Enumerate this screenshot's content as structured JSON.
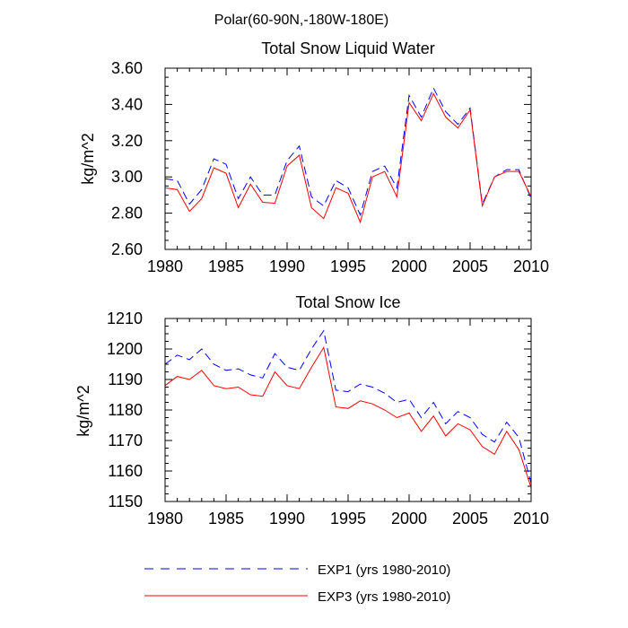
{
  "figure": {
    "suptitle": "Polar(60-90N,-180W-180E)"
  },
  "legend": [
    {
      "label": "EXP1 (yrs 1980-2010)",
      "color": "#0000ff",
      "dash": "dashed"
    },
    {
      "label": "EXP3 (yrs 1980-2010)",
      "color": "#ff0000",
      "dash": "solid"
    }
  ],
  "chart_data": [
    {
      "type": "line",
      "title": "Total Snow Liquid Water",
      "xlabel": "",
      "ylabel": "kg/m^2",
      "xlim": [
        1980,
        2010
      ],
      "ylim": [
        2.6,
        3.6
      ],
      "xticks": [
        1980,
        1985,
        1990,
        1995,
        2000,
        2005,
        2010
      ],
      "xtick_labels": [
        "1980",
        "1985",
        "1990",
        "1995",
        "2000",
        "2005",
        "2010"
      ],
      "yticks": [
        2.6,
        2.8,
        3.0,
        3.2,
        3.4,
        3.6
      ],
      "ytick_labels": [
        "2.60",
        "2.80",
        "3.00",
        "3.20",
        "3.40",
        "3.60"
      ],
      "x": [
        1980,
        1981,
        1982,
        1983,
        1984,
        1985,
        1986,
        1987,
        1988,
        1989,
        1990,
        1991,
        1992,
        1993,
        1994,
        1995,
        1996,
        1997,
        1998,
        1999,
        2000,
        2001,
        2002,
        2003,
        2004,
        2005,
        2006,
        2007,
        2008,
        2009,
        2010
      ],
      "series": [
        {
          "name": "EXP1 (yrs 1980-2010)",
          "color": "#0000ff",
          "dash": "dashed",
          "values": [
            2.99,
            2.98,
            2.85,
            2.93,
            3.1,
            3.07,
            2.88,
            3.0,
            2.9,
            2.9,
            3.09,
            3.17,
            2.89,
            2.84,
            2.98,
            2.94,
            2.79,
            3.03,
            3.06,
            2.94,
            3.45,
            3.33,
            3.49,
            3.36,
            3.29,
            3.38,
            2.85,
            3.0,
            3.04,
            3.04,
            2.88
          ]
        },
        {
          "name": "EXP3 (yrs 1980-2010)",
          "color": "#ff0000",
          "dash": "solid",
          "values": [
            2.94,
            2.93,
            2.81,
            2.88,
            3.05,
            3.02,
            2.83,
            2.96,
            2.86,
            2.855,
            3.06,
            3.12,
            2.83,
            2.77,
            2.94,
            2.91,
            2.75,
            3.0,
            3.03,
            2.89,
            3.41,
            3.31,
            3.46,
            3.33,
            3.27,
            3.37,
            2.84,
            3.0,
            3.03,
            3.03,
            2.89
          ]
        }
      ]
    },
    {
      "type": "line",
      "title": "Total Snow Ice",
      "xlabel": "",
      "ylabel": "kg/m^2",
      "xlim": [
        1980,
        2010
      ],
      "ylim": [
        1150,
        1210
      ],
      "xticks": [
        1980,
        1985,
        1990,
        1995,
        2000,
        2005,
        2010
      ],
      "xtick_labels": [
        "1980",
        "1985",
        "1990",
        "1995",
        "2000",
        "2005",
        "2010"
      ],
      "yticks": [
        1150,
        1160,
        1170,
        1180,
        1190,
        1200,
        1210
      ],
      "ytick_labels": [
        "1150",
        "1160",
        "1170",
        "1180",
        "1190",
        "1200",
        "1210"
      ],
      "x": [
        1980,
        1981,
        1982,
        1983,
        1984,
        1985,
        1986,
        1987,
        1988,
        1989,
        1990,
        1991,
        1992,
        1993,
        1994,
        1995,
        1996,
        1997,
        1998,
        1999,
        2000,
        2001,
        2002,
        2003,
        2004,
        2005,
        2006,
        2007,
        2008,
        2009,
        2010
      ],
      "series": [
        {
          "name": "EXP1 (yrs 1980-2010)",
          "color": "#0000ff",
          "dash": "dashed",
          "values": [
            1195,
            1198,
            1196.5,
            1200,
            1195,
            1193,
            1193.5,
            1191.5,
            1190.5,
            1198.5,
            1194,
            1193,
            1200,
            1206,
            1186.5,
            1186,
            1188.5,
            1187.5,
            1185.5,
            1182.5,
            1183.5,
            1177.5,
            1182.5,
            1175.5,
            1179.5,
            1177.5,
            1172,
            1169.5,
            1176,
            1171,
            1156
          ]
        },
        {
          "name": "EXP3 (yrs 1980-2010)",
          "color": "#ff0000",
          "dash": "solid",
          "values": [
            1188,
            1191,
            1190,
            1193,
            1188,
            1187,
            1187.5,
            1185,
            1184.5,
            1192.5,
            1188,
            1187,
            1194,
            1200.5,
            1181,
            1180.5,
            1183,
            1182,
            1180,
            1177.5,
            1179,
            1173,
            1178,
            1171.5,
            1175.5,
            1173.5,
            1168,
            1165.5,
            1173,
            1167,
            1154.5
          ]
        }
      ]
    }
  ]
}
